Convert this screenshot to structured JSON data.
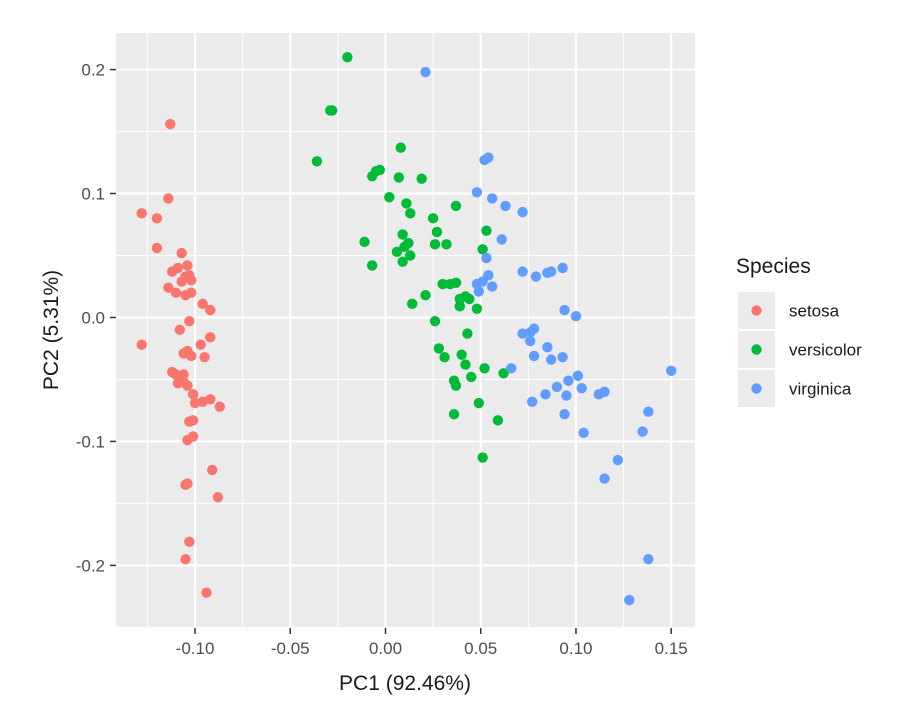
{
  "chart_data": {
    "type": "scatter",
    "xlabel": "PC1 (92.46%)",
    "ylabel": "PC2 (5.31%)",
    "xlim": [
      -0.1415,
      0.1625
    ],
    "ylim": [
      -0.2505,
      0.2295
    ],
    "xticks": [
      -0.1,
      -0.05,
      0.0,
      0.05,
      0.1,
      0.15
    ],
    "xtick_labels": [
      "-0.10",
      "-0.05",
      "0.00",
      "0.05",
      "0.10",
      "0.15"
    ],
    "yticks": [
      -0.2,
      -0.1,
      0.0,
      0.1,
      0.2
    ],
    "ytick_labels": [
      "-0.2",
      "-0.1",
      "0.0",
      "0.1",
      "0.2"
    ],
    "legend": {
      "title": "Species",
      "position": "right"
    },
    "series": [
      {
        "name": "setosa",
        "color": "#F8766D",
        "points": [
          [
            -0.113,
            0.156
          ],
          [
            -0.114,
            0.096
          ],
          [
            -0.128,
            0.084
          ],
          [
            -0.12,
            0.08
          ],
          [
            -0.107,
            0.052
          ],
          [
            -0.12,
            0.056
          ],
          [
            -0.104,
            0.042
          ],
          [
            -0.109,
            0.04
          ],
          [
            -0.112,
            0.037
          ],
          [
            -0.103,
            0.034
          ],
          [
            -0.105,
            0.033
          ],
          [
            -0.107,
            0.029
          ],
          [
            -0.102,
            0.03
          ],
          [
            -0.114,
            0.024
          ],
          [
            -0.11,
            0.02
          ],
          [
            -0.105,
            0.018
          ],
          [
            -0.102,
            0.02
          ],
          [
            -0.096,
            0.011
          ],
          [
            -0.092,
            0.006
          ],
          [
            -0.103,
            -0.003
          ],
          [
            -0.092,
            -0.016
          ],
          [
            -0.108,
            -0.01
          ],
          [
            -0.128,
            -0.022
          ],
          [
            -0.097,
            -0.022
          ],
          [
            -0.104,
            -0.027
          ],
          [
            -0.106,
            -0.029
          ],
          [
            -0.102,
            -0.031
          ],
          [
            -0.095,
            -0.032
          ],
          [
            -0.112,
            -0.044
          ],
          [
            -0.11,
            -0.046
          ],
          [
            -0.106,
            -0.046
          ],
          [
            -0.107,
            -0.049
          ],
          [
            -0.109,
            -0.053
          ],
          [
            -0.106,
            -0.052
          ],
          [
            -0.104,
            -0.055
          ],
          [
            -0.101,
            -0.062
          ],
          [
            -0.092,
            -0.066
          ],
          [
            -0.096,
            -0.068
          ],
          [
            -0.1,
            -0.069
          ],
          [
            -0.087,
            -0.072
          ],
          [
            -0.103,
            -0.084
          ],
          [
            -0.101,
            -0.083
          ],
          [
            -0.101,
            -0.096
          ],
          [
            -0.104,
            -0.099
          ],
          [
            -0.091,
            -0.123
          ],
          [
            -0.105,
            -0.135
          ],
          [
            -0.104,
            -0.134
          ],
          [
            -0.088,
            -0.145
          ],
          [
            -0.103,
            -0.181
          ],
          [
            -0.105,
            -0.195
          ],
          [
            -0.094,
            -0.222
          ]
        ]
      },
      {
        "name": "versicolor",
        "color": "#00BA38",
        "points": [
          [
            -0.02,
            0.21
          ],
          [
            -0.029,
            0.167
          ],
          [
            -0.028,
            0.167
          ],
          [
            -0.036,
            0.126
          ],
          [
            0.008,
            0.137
          ],
          [
            -0.005,
            0.118
          ],
          [
            -0.003,
            0.119
          ],
          [
            -0.007,
            0.114
          ],
          [
            0.007,
            0.113
          ],
          [
            0.019,
            0.112
          ],
          [
            0.002,
            0.097
          ],
          [
            0.011,
            0.092
          ],
          [
            0.013,
            0.084
          ],
          [
            0.037,
            0.09
          ],
          [
            0.025,
            0.08
          ],
          [
            0.027,
            0.069
          ],
          [
            0.009,
            0.067
          ],
          [
            0.012,
            0.06
          ],
          [
            0.026,
            0.059
          ],
          [
            0.032,
            0.059
          ],
          [
            -0.011,
            0.061
          ],
          [
            0.01,
            0.057
          ],
          [
            0.006,
            0.053
          ],
          [
            0.053,
            0.07
          ],
          [
            0.051,
            0.055
          ],
          [
            0.013,
            0.05
          ],
          [
            0.009,
            0.045
          ],
          [
            -0.007,
            0.042
          ],
          [
            0.034,
            0.027
          ],
          [
            0.037,
            0.028
          ],
          [
            0.03,
            0.027
          ],
          [
            0.021,
            0.018
          ],
          [
            0.042,
            0.017
          ],
          [
            0.014,
            0.011
          ],
          [
            0.039,
            0.015
          ],
          [
            0.044,
            0.015
          ],
          [
            0.039,
            0.009
          ],
          [
            0.048,
            0.007
          ],
          [
            0.026,
            -0.003
          ],
          [
            0.043,
            -0.013
          ],
          [
            0.028,
            -0.025
          ],
          [
            0.04,
            -0.03
          ],
          [
            0.031,
            -0.032
          ],
          [
            0.052,
            -0.041
          ],
          [
            0.042,
            -0.038
          ],
          [
            0.045,
            -0.048
          ],
          [
            0.062,
            -0.045
          ],
          [
            0.036,
            -0.051
          ],
          [
            0.037,
            -0.055
          ],
          [
            0.049,
            -0.069
          ],
          [
            0.036,
            -0.078
          ],
          [
            0.059,
            -0.083
          ],
          [
            0.051,
            -0.113
          ]
        ]
      },
      {
        "name": "virginica",
        "color": "#619CFF",
        "points": [
          [
            0.021,
            0.198
          ],
          [
            0.052,
            0.127
          ],
          [
            0.054,
            0.129
          ],
          [
            0.048,
            0.101
          ],
          [
            0.056,
            0.096
          ],
          [
            0.063,
            0.09
          ],
          [
            0.072,
            0.085
          ],
          [
            0.061,
            0.063
          ],
          [
            0.053,
            0.048
          ],
          [
            0.072,
            0.037
          ],
          [
            0.079,
            0.033
          ],
          [
            0.085,
            0.036
          ],
          [
            0.087,
            0.037
          ],
          [
            0.093,
            0.04
          ],
          [
            0.051,
            0.029
          ],
          [
            0.048,
            0.027
          ],
          [
            0.054,
            0.034
          ],
          [
            0.056,
            0.025
          ],
          [
            0.049,
            0.021
          ],
          [
            0.094,
            0.006
          ],
          [
            0.1,
            0.001
          ],
          [
            0.072,
            -0.013
          ],
          [
            0.076,
            -0.012
          ],
          [
            0.078,
            -0.009
          ],
          [
            0.076,
            -0.019
          ],
          [
            0.085,
            -0.024
          ],
          [
            0.087,
            -0.034
          ],
          [
            0.078,
            -0.031
          ],
          [
            0.093,
            -0.032
          ],
          [
            0.066,
            -0.041
          ],
          [
            0.101,
            -0.047
          ],
          [
            0.096,
            -0.051
          ],
          [
            0.09,
            -0.056
          ],
          [
            0.084,
            -0.062
          ],
          [
            0.077,
            -0.068
          ],
          [
            0.103,
            -0.057
          ],
          [
            0.095,
            -0.063
          ],
          [
            0.112,
            -0.062
          ],
          [
            0.115,
            -0.06
          ],
          [
            0.094,
            -0.078
          ],
          [
            0.104,
            -0.093
          ],
          [
            0.15,
            -0.043
          ],
          [
            0.138,
            -0.076
          ],
          [
            0.135,
            -0.092
          ],
          [
            0.122,
            -0.115
          ],
          [
            0.115,
            -0.13
          ],
          [
            0.138,
            -0.195
          ],
          [
            0.128,
            -0.228
          ]
        ]
      }
    ]
  }
}
